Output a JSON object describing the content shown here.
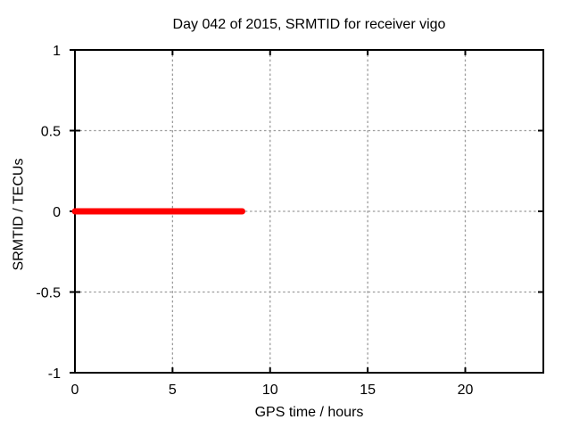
{
  "chart_data": {
    "type": "line",
    "title": "Day 042 of 2015, SRMTID for receiver vigo",
    "xlabel": "GPS time / hours",
    "ylabel": "SRMTID / TECUs",
    "xlim": [
      0,
      24
    ],
    "ylim": [
      -1,
      1
    ],
    "xticks": [
      0,
      5,
      10,
      15,
      20
    ],
    "yticks": [
      -1,
      -0.5,
      0,
      0.5,
      1
    ],
    "grid": true,
    "legend": "none",
    "series": [
      {
        "name": "SRMTID",
        "color": "#ff0000",
        "linewidth": 7,
        "x": [
          0,
          8.57
        ],
        "y": [
          0,
          0
        ]
      }
    ]
  },
  "colors": {
    "background": "#ffffff",
    "border": "#000000",
    "grid": "#9c9c9c",
    "text": "#000000",
    "series_red": "#ff0000"
  }
}
